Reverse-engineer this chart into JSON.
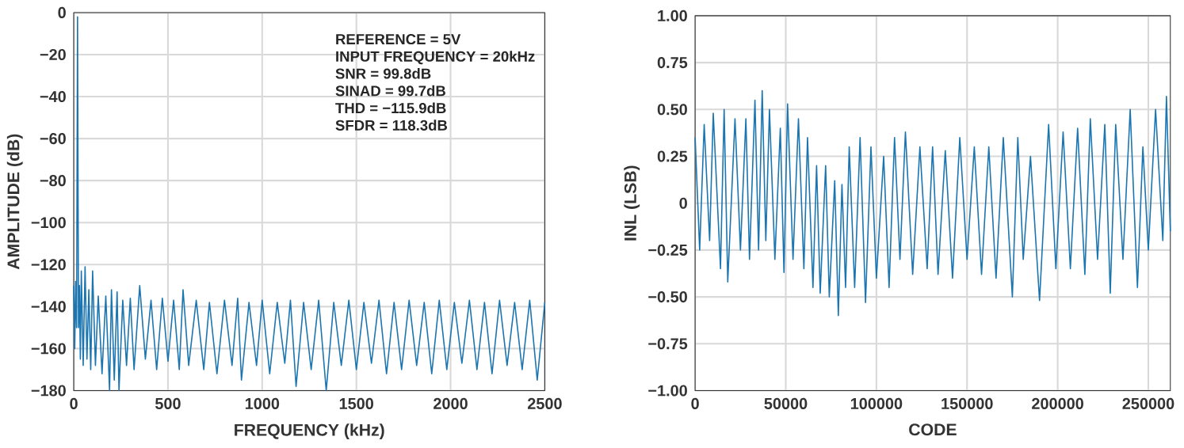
{
  "chart_data": [
    {
      "type": "line",
      "xlabel": "FREQUENCY (kHz)",
      "ylabel": "AMPLITUDE (dB)",
      "annotations": [
        "REFERENCE = 5V",
        "INPUT FREQUENCY = 20kHz",
        "SNR = 99.8dB",
        "SINAD = 99.7dB",
        "THD = −115.9dB",
        "SFDR = 118.3dB"
      ],
      "xlim": [
        0,
        2500
      ],
      "ylim": [
        -180,
        0
      ],
      "xticks": [
        0,
        500,
        1000,
        1500,
        2000,
        2500
      ],
      "yticks": [
        {
          "value": -180,
          "label": "−180"
        },
        {
          "value": -160,
          "label": "−160"
        },
        {
          "value": -140,
          "label": "−140"
        },
        {
          "value": -120,
          "label": "−120"
        },
        {
          "value": -100,
          "label": "−100"
        },
        {
          "value": -80,
          "label": "−80"
        },
        {
          "value": -60,
          "label": "−60"
        },
        {
          "value": -40,
          "label": "−40"
        },
        {
          "value": -20,
          "label": "−20"
        },
        0
      ],
      "grid": true,
      "series": [
        {
          "color": "#1b75b0",
          "x": [
            0,
            5,
            10,
            15,
            20,
            25,
            30,
            35,
            40,
            50,
            60,
            70,
            80,
            90,
            100,
            115,
            130,
            150,
            170,
            190,
            200,
            215,
            230,
            240,
            260,
            280,
            300,
            320,
            350,
            380,
            410,
            440,
            470,
            500,
            530,
            560,
            580,
            610,
            650,
            690,
            720,
            760,
            800,
            840,
            870,
            890,
            930,
            970,
            1000,
            1040,
            1080,
            1120,
            1150,
            1180,
            1220,
            1260,
            1300,
            1340,
            1380,
            1420,
            1460,
            1500,
            1540,
            1580,
            1620,
            1660,
            1700,
            1740,
            1780,
            1820,
            1860,
            1900,
            1940,
            1980,
            2020,
            2060,
            2100,
            2140,
            2180,
            2220,
            2260,
            2300,
            2340,
            2380,
            2420,
            2460,
            2500
          ],
          "values": [
            -130,
            -160,
            -128,
            -150,
            -2,
            -150,
            -130,
            -165,
            -123,
            -168,
            -121,
            -165,
            -132,
            -170,
            -123,
            -168,
            -135,
            -172,
            -135,
            -180,
            -132,
            -175,
            -133,
            -180,
            -137,
            -168,
            -136,
            -170,
            -130,
            -165,
            -137,
            -170,
            -136,
            -166,
            -137,
            -170,
            -132,
            -168,
            -137,
            -170,
            -138,
            -172,
            -137,
            -168,
            -136,
            -175,
            -138,
            -168,
            -137,
            -172,
            -138,
            -167,
            -137,
            -178,
            -138,
            -170,
            -137,
            -180,
            -138,
            -168,
            -137,
            -170,
            -138,
            -167,
            -137,
            -172,
            -138,
            -170,
            -137,
            -168,
            -138,
            -172,
            -137,
            -170,
            -138,
            -167,
            -137,
            -170,
            -138,
            -172,
            -137,
            -168,
            -138,
            -170,
            -137,
            -175,
            -138
          ]
        }
      ]
    },
    {
      "type": "line",
      "xlabel": "CODE",
      "ylabel": "INL (LSB)",
      "xlim": [
        0,
        262143
      ],
      "ylim": [
        -1,
        1
      ],
      "xticks": [
        0,
        50000,
        100000,
        150000,
        200000,
        250000
      ],
      "yticks": [
        {
          "value": -1,
          "label": "−1.00"
        },
        {
          "value": -0.75,
          "label": "−0.75"
        },
        {
          "value": -0.5,
          "label": "−0.50"
        },
        {
          "value": -0.25,
          "label": "−0.25"
        },
        0,
        {
          "value": 0.25,
          "label": "0.25"
        },
        {
          "value": 0.5,
          "label": "0.50"
        },
        {
          "value": 0.75,
          "label": "0.75"
        },
        {
          "value": 1,
          "label": "1.00"
        }
      ],
      "grid": true,
      "series": [
        {
          "color": "#1b75b0",
          "x": [
            0,
            2500,
            5000,
            8000,
            10000,
            14000,
            16000,
            18000,
            22000,
            25000,
            28000,
            30000,
            33000,
            35000,
            37000,
            39000,
            41000,
            44000,
            47000,
            49000,
            51000,
            54000,
            57000,
            60000,
            62000,
            65000,
            67000,
            69000,
            72000,
            74000,
            77000,
            79000,
            81000,
            83000,
            85000,
            88000,
            91000,
            94000,
            97000,
            100000,
            104000,
            107000,
            110000,
            113000,
            116000,
            120000,
            124000,
            128000,
            131000,
            134000,
            138000,
            142000,
            146000,
            150000,
            154000,
            158000,
            162000,
            166000,
            170000,
            175000,
            178000,
            181000,
            185000,
            190000,
            195000,
            199000,
            203000,
            207000,
            211000,
            215000,
            218000,
            222000,
            226000,
            229000,
            232000,
            236000,
            240000,
            244000,
            247000,
            250000,
            254000,
            258000,
            260000,
            262143
          ],
          "values": [
            0.35,
            -0.25,
            0.42,
            -0.2,
            0.48,
            -0.35,
            0.5,
            -0.42,
            0.45,
            -0.25,
            0.45,
            -0.3,
            0.55,
            -0.25,
            0.6,
            -0.2,
            0.5,
            -0.3,
            0.4,
            -0.37,
            0.53,
            -0.3,
            0.45,
            -0.35,
            0.35,
            -0.45,
            0.2,
            -0.48,
            0.2,
            -0.5,
            0.12,
            -0.6,
            0.1,
            -0.45,
            0.3,
            -0.45,
            0.35,
            -0.53,
            0.3,
            -0.4,
            0.25,
            -0.45,
            0.35,
            -0.3,
            0.38,
            -0.38,
            0.3,
            -0.35,
            0.3,
            -0.38,
            0.28,
            -0.4,
            0.35,
            -0.3,
            0.3,
            -0.38,
            0.3,
            -0.4,
            0.35,
            -0.5,
            0.35,
            -0.3,
            0.25,
            -0.52,
            0.42,
            -0.35,
            0.38,
            -0.35,
            0.4,
            -0.38,
            0.45,
            -0.3,
            0.42,
            -0.48,
            0.42,
            -0.3,
            0.5,
            -0.45,
            0.3,
            -0.25,
            0.5,
            -0.2,
            0.57,
            -0.15
          ]
        }
      ]
    }
  ]
}
